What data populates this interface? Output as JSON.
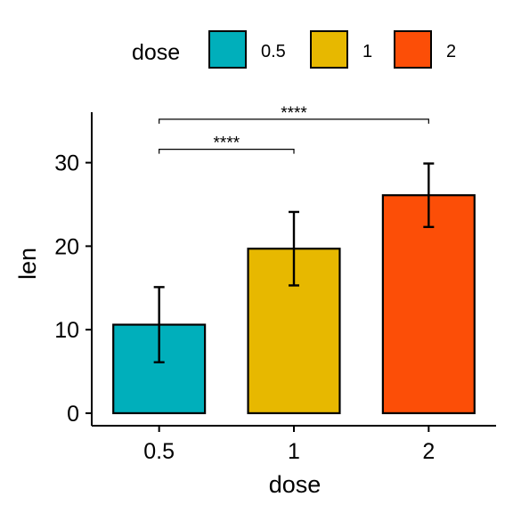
{
  "chart_data": {
    "type": "bar",
    "xlabel": "dose",
    "ylabel": "len",
    "categories": [
      "0.5",
      "1",
      "2"
    ],
    "values": [
      10.6,
      19.7,
      26.1
    ],
    "error_bars": [
      {
        "low": 6.1,
        "high": 15.1
      },
      {
        "low": 15.3,
        "high": 24.1
      },
      {
        "low": 22.3,
        "high": 29.9
      }
    ],
    "ylim": [
      -1.5,
      37
    ],
    "yticks": [
      0,
      10,
      20,
      30
    ],
    "ytick_labels": [
      "0",
      "10",
      "20",
      "30"
    ],
    "colors": [
      "#00AFBB",
      "#E7B800",
      "#FC4E07"
    ],
    "legend": {
      "title": "dose",
      "position": "top",
      "entries": [
        "0.5",
        "1",
        "2"
      ]
    },
    "significance": [
      {
        "from": "0.5",
        "to": "1",
        "label": "****",
        "y": 31.6
      },
      {
        "from": "0.5",
        "to": "2",
        "label": "****",
        "y": 35.2
      }
    ],
    "grid": false
  }
}
